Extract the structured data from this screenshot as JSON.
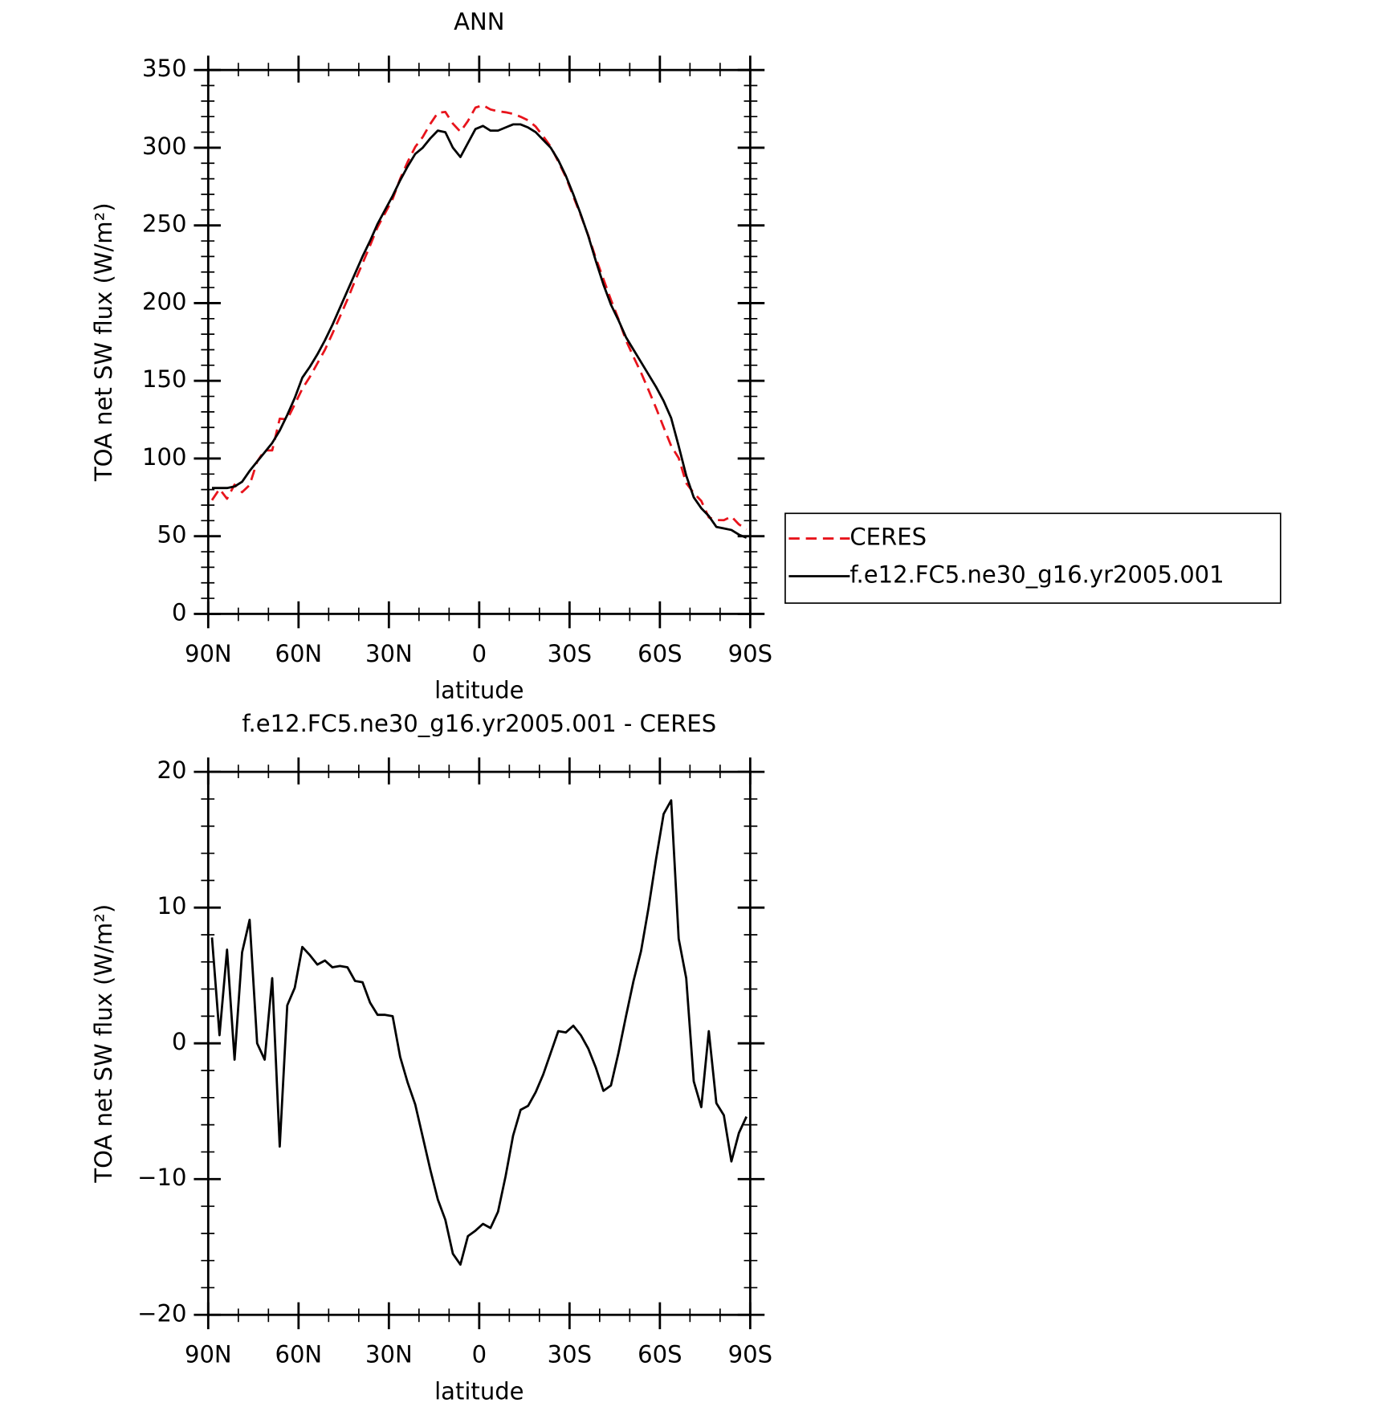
{
  "chart_data": [
    {
      "type": "line",
      "title": "ANN",
      "xlabel": "latitude",
      "ylabel": "TOA net SW flux (W/m²)",
      "x": [
        88.75,
        86.25,
        83.75,
        81.25,
        78.75,
        76.25,
        73.75,
        71.25,
        68.75,
        66.25,
        63.75,
        61.25,
        58.75,
        56.25,
        53.75,
        51.25,
        48.75,
        46.25,
        43.75,
        41.25,
        38.75,
        36.25,
        33.75,
        31.25,
        28.75,
        26.25,
        23.75,
        21.25,
        18.75,
        16.25,
        13.75,
        11.25,
        8.75,
        6.25,
        3.75,
        1.25,
        -1.25,
        -3.75,
        -6.25,
        -8.75,
        -11.25,
        -13.75,
        -16.25,
        -18.75,
        -21.25,
        -23.75,
        -26.25,
        -28.75,
        -31.25,
        -33.75,
        -36.25,
        -38.75,
        -41.25,
        -43.75,
        -46.25,
        -48.75,
        -51.25,
        -53.75,
        -56.25,
        -58.75,
        -61.25,
        -63.75,
        -66.25,
        -68.75,
        -71.25,
        -73.75,
        -76.25,
        -78.75,
        -81.25,
        -83.75,
        -86.25,
        -88.75
      ],
      "series": [
        {
          "name": "CERES",
          "color": "#e8141c",
          "line_style": "dashed",
          "values": [
            73.2,
            80.4,
            74.1,
            83.2,
            78.3,
            82.9,
            98,
            105.2,
            105.2,
            125.6,
            125.2,
            134.9,
            144.9,
            152.5,
            161.2,
            169.9,
            180.4,
            191.3,
            202.4,
            214.4,
            225.5,
            237,
            248.9,
            257.9,
            267,
            280,
            290.9,
            300.5,
            306.9,
            315.3,
            322.5,
            323,
            315.5,
            310.3,
            317.2,
            325.8,
            327.3,
            324.6,
            323.4,
            322.8,
            321.8,
            319.9,
            317.6,
            313.6,
            307.3,
            300.7,
            291.1,
            281.2,
            268.7,
            256.4,
            243.4,
            228.8,
            215.5,
            202.1,
            189.7,
            176,
            165.4,
            155.2,
            144,
            132.4,
            120.1,
            108.1,
            100.3,
            84.2,
            77.8,
            72.7,
            62.1,
            60.4,
            60.3,
            62.7,
            57.6,
            54.4
          ]
        },
        {
          "name": "f.e12.FC5.ne30_g16.yr2005.001",
          "color": "#000000",
          "line_style": "solid",
          "values": [
            81,
            81,
            81,
            82,
            85,
            92,
            98,
            104,
            110,
            118,
            128,
            139,
            152,
            159,
            167,
            176,
            186,
            197,
            208,
            219,
            230,
            240,
            251,
            260,
            269,
            279,
            288,
            296,
            300,
            306,
            311,
            310,
            300,
            294,
            303,
            312,
            314,
            311,
            311,
            313,
            315,
            315,
            313,
            310,
            305,
            300,
            292,
            282,
            270,
            257,
            243,
            227,
            212,
            199,
            189,
            178,
            170,
            162,
            154,
            146,
            137,
            126,
            108,
            89,
            75,
            68,
            63,
            56,
            55,
            54,
            51,
            49
          ]
        }
      ],
      "xlim": [
        90,
        -90
      ],
      "xticks": [
        {
          "value": 90,
          "label": "90N"
        },
        {
          "value": 60,
          "label": "60N"
        },
        {
          "value": 30,
          "label": "30N"
        },
        0,
        {
          "value": -30,
          "label": "30S"
        },
        {
          "value": -60,
          "label": "60S"
        },
        {
          "value": -90,
          "label": "90S"
        }
      ],
      "ylim": [
        0,
        350
      ],
      "yticks": [
        0,
        50,
        100,
        150,
        200,
        250,
        300,
        350
      ],
      "legend_position": "right"
    },
    {
      "type": "line",
      "title": "f.e12.FC5.ne30_g16.yr2005.001 - CERES",
      "xlabel": "latitude",
      "ylabel": "TOA net SW flux (W/m²)",
      "x": [
        88.75,
        86.25,
        83.75,
        81.25,
        78.75,
        76.25,
        73.75,
        71.25,
        68.75,
        66.25,
        63.75,
        61.25,
        58.75,
        56.25,
        53.75,
        51.25,
        48.75,
        46.25,
        43.75,
        41.25,
        38.75,
        36.25,
        33.75,
        31.25,
        28.75,
        26.25,
        23.75,
        21.25,
        18.75,
        16.25,
        13.75,
        11.25,
        8.75,
        6.25,
        3.75,
        1.25,
        -1.25,
        -3.75,
        -6.25,
        -8.75,
        -11.25,
        -13.75,
        -16.25,
        -18.75,
        -21.25,
        -23.75,
        -26.25,
        -28.75,
        -31.25,
        -33.75,
        -36.25,
        -38.75,
        -41.25,
        -43.75,
        -46.25,
        -48.75,
        -51.25,
        -53.75,
        -56.25,
        -58.75,
        -61.25,
        -63.75,
        -66.25,
        -68.75,
        -71.25,
        -73.75,
        -76.25,
        -78.75,
        -81.25,
        -83.75,
        -86.25,
        -88.75
      ],
      "color": "#000000",
      "values": [
        7.8,
        0.6,
        6.9,
        -1.2,
        6.7,
        9.1,
        0,
        -1.2,
        4.8,
        -7.6,
        2.8,
        4.1,
        7.1,
        6.5,
        5.8,
        6.1,
        5.6,
        5.7,
        5.6,
        4.6,
        4.5,
        3.0,
        2.1,
        2.1,
        2.0,
        -1.0,
        -2.9,
        -4.5,
        -6.9,
        -9.3,
        -11.5,
        -13.0,
        -15.5,
        -16.3,
        -14.2,
        -13.8,
        -13.3,
        -13.6,
        -12.4,
        -9.8,
        -6.8,
        -4.9,
        -4.6,
        -3.6,
        -2.3,
        -0.7,
        0.9,
        0.8,
        1.3,
        0.6,
        -0.4,
        -1.8,
        -3.5,
        -3.1,
        -0.7,
        2.0,
        4.6,
        6.8,
        10.0,
        13.6,
        16.9,
        17.9,
        7.7,
        4.8,
        -2.8,
        -4.7,
        0.9,
        -4.4,
        -5.3,
        -8.7,
        -6.6,
        -5.4
      ],
      "xlim": [
        90,
        -90
      ],
      "xticks": [
        {
          "value": 90,
          "label": "90N"
        },
        {
          "value": 60,
          "label": "60N"
        },
        {
          "value": 30,
          "label": "30N"
        },
        0,
        {
          "value": -30,
          "label": "30S"
        },
        {
          "value": -60,
          "label": "60S"
        },
        {
          "value": -90,
          "label": "90S"
        }
      ],
      "ylim": [
        -20,
        20
      ],
      "yticks": [
        {
          "value": -20,
          "label": "−20"
        },
        {
          "value": -10,
          "label": "−10"
        },
        0,
        10,
        20
      ]
    }
  ]
}
